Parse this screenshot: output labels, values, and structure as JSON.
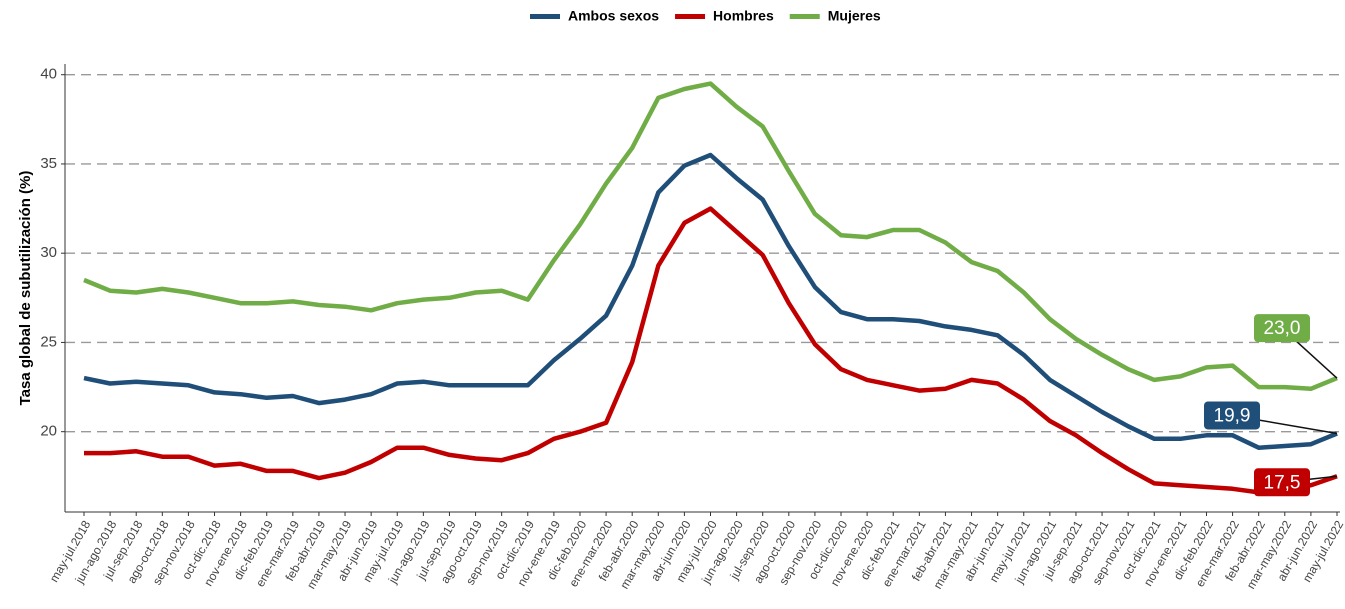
{
  "chart_data": {
    "type": "line",
    "y_label": "Tasa global de subutilización (%)",
    "categories": [
      "may-jul.2018",
      "jun-ago.2018",
      "jul-sep.2018",
      "ago-oct.2018",
      "sep-nov.2018",
      "oct-dic.2018",
      "nov-ene.2018",
      "dic-feb.2019",
      "ene-mar.2019",
      "feb-abr.2019",
      "mar-may.2019",
      "abr-jun.2019",
      "may-jul.2019",
      "jun-ago.2019",
      "jul-sep.2019",
      "ago-oct.2019",
      "sep-nov.2019",
      "oct-dic.2019",
      "nov-ene.2019",
      "dic-feb.2020",
      "ene-mar.2020",
      "feb-abr.2020",
      "mar-may.2020",
      "abr-jun.2020",
      "may-jul.2020",
      "jun-ago.2020",
      "jul-sep.2020",
      "ago-oct.2020",
      "sep-nov.2020",
      "oct-dic.2020",
      "nov-ene.2020",
      "dic-feb.2021",
      "ene-mar.2021",
      "feb-abr.2021",
      "mar-may.2021",
      "abr-jun.2021",
      "may-jul.2021",
      "jun-ago.2021",
      "jul-sep.2021",
      "ago-oct.2021",
      "sep-nov.2021",
      "oct-dic.2021",
      "nov-ene.2021",
      "dic-feb.2022",
      "ene-mar.2022",
      "feb-abr.2022",
      "mar-may.2022",
      "abr-jun.2022",
      "may-jul.2022"
    ],
    "series": [
      {
        "name": "Ambos sexos",
        "color": "#1f4e79",
        "values": [
          23.0,
          22.7,
          22.8,
          22.7,
          22.6,
          22.2,
          22.1,
          21.9,
          22.0,
          21.6,
          21.8,
          22.1,
          22.7,
          22.8,
          22.6,
          22.6,
          22.6,
          22.6,
          24.0,
          25.2,
          26.5,
          29.3,
          33.4,
          34.9,
          35.5,
          34.2,
          33.0,
          30.4,
          28.1,
          26.7,
          26.3,
          26.3,
          26.2,
          25.9,
          25.7,
          25.4,
          24.3,
          22.9,
          22.0,
          21.1,
          20.3,
          19.6,
          19.6,
          19.8,
          19.8,
          19.1,
          19.2,
          19.3,
          19.9
        ],
        "value_labels": [
          null,
          null,
          null,
          null,
          null,
          null,
          null,
          null,
          null,
          null,
          null,
          null,
          null,
          null,
          null,
          null,
          null,
          null,
          null,
          null,
          null,
          null,
          null,
          null,
          null,
          null,
          null,
          null,
          null,
          null,
          null,
          null,
          null,
          null,
          null,
          null,
          null,
          null,
          null,
          null,
          null,
          null,
          null,
          null,
          null,
          null,
          null,
          null,
          "19,9"
        ]
      },
      {
        "name": "Hombres",
        "color": "#c00000",
        "values": [
          18.8,
          18.8,
          18.9,
          18.6,
          18.6,
          18.1,
          18.2,
          17.8,
          17.8,
          17.4,
          17.7,
          18.3,
          19.1,
          19.1,
          18.7,
          18.5,
          18.4,
          18.8,
          19.6,
          20.0,
          20.5,
          23.9,
          29.3,
          31.7,
          32.5,
          31.2,
          29.9,
          27.2,
          24.9,
          23.5,
          22.9,
          22.6,
          22.3,
          22.4,
          22.9,
          22.7,
          21.8,
          20.6,
          19.8,
          18.8,
          17.9,
          17.1,
          17.0,
          16.9,
          16.8,
          16.6,
          16.7,
          17.0,
          17.5
        ],
        "value_labels": [
          null,
          null,
          null,
          null,
          null,
          null,
          null,
          null,
          null,
          null,
          null,
          null,
          null,
          null,
          null,
          null,
          null,
          null,
          null,
          null,
          null,
          null,
          null,
          null,
          null,
          null,
          null,
          null,
          null,
          null,
          null,
          null,
          null,
          null,
          null,
          null,
          null,
          null,
          null,
          null,
          null,
          null,
          null,
          null,
          null,
          null,
          null,
          null,
          "17,5"
        ]
      },
      {
        "name": "Mujeres",
        "color": "#70ad47",
        "values": [
          28.5,
          27.9,
          27.8,
          28.0,
          27.8,
          27.5,
          27.2,
          27.2,
          27.3,
          27.1,
          27.0,
          26.8,
          27.2,
          27.4,
          27.5,
          27.8,
          27.9,
          27.4,
          29.6,
          31.6,
          33.9,
          35.9,
          38.7,
          39.2,
          39.5,
          38.2,
          37.1,
          34.6,
          32.2,
          31.0,
          30.9,
          31.3,
          31.3,
          30.6,
          29.5,
          29.0,
          27.8,
          26.3,
          25.2,
          24.3,
          23.5,
          22.9,
          23.1,
          23.6,
          23.7,
          22.5,
          22.5,
          22.4,
          23.0
        ],
        "value_labels": [
          null,
          null,
          null,
          null,
          null,
          null,
          null,
          null,
          null,
          null,
          null,
          null,
          null,
          null,
          null,
          null,
          null,
          null,
          null,
          null,
          null,
          null,
          null,
          null,
          null,
          null,
          null,
          null,
          null,
          null,
          null,
          null,
          null,
          null,
          null,
          null,
          null,
          null,
          null,
          null,
          null,
          null,
          null,
          null,
          null,
          null,
          null,
          null,
          "23,0"
        ]
      }
    ],
    "ylim": [
      15.5,
      40.6
    ],
    "yticks": [
      20,
      25,
      30,
      35,
      40
    ],
    "grid": true,
    "legend": "top"
  }
}
